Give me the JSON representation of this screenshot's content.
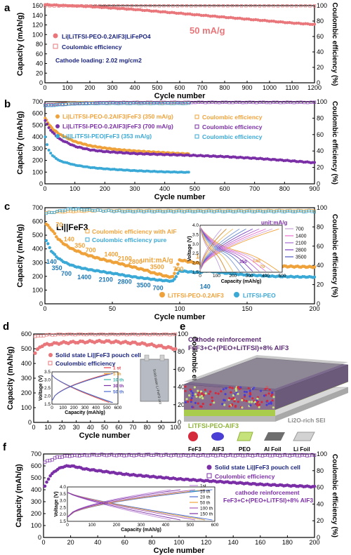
{
  "chart_data": [
    {
      "panel": "a",
      "type": "scatter",
      "xlabel": "Cycle number",
      "ylabel": "Capacity (mAh/g)",
      "y2label": "Coulombic efficiency (%)",
      "xlim": [
        0,
        1200
      ],
      "ylim": [
        0,
        160
      ],
      "y2lim": [
        0,
        100
      ],
      "xticks": [
        0,
        100,
        200,
        300,
        400,
        500,
        600,
        700,
        800,
        900,
        1000,
        1100,
        1200
      ],
      "yticks": [
        0,
        20,
        40,
        60,
        80,
        100,
        120,
        140,
        160
      ],
      "y2ticks": [
        0,
        20,
        40,
        60,
        80,
        100
      ],
      "annotations": [
        "50 mA/g",
        "Cathode loading: 2.02 mg/cm2"
      ],
      "series": [
        {
          "name": "Li|LiTFSI-PEO-0.2AlF3|LiFePO4",
          "axis": "left",
          "color": "#e9767a",
          "x": [
            1,
            100,
            200,
            300,
            400,
            500,
            600,
            700,
            800,
            900,
            1000,
            1100,
            1200
          ],
          "y": [
            162,
            160,
            158,
            155,
            152,
            148,
            144,
            140,
            136,
            132,
            128,
            124,
            121
          ]
        },
        {
          "name": "Coulombic efficiency",
          "axis": "right",
          "color": "#e9767a",
          "x": [
            1,
            200,
            400,
            600,
            800,
            1000,
            1200
          ],
          "y": [
            99.5,
            99.8,
            99.8,
            99.7,
            99.8,
            99.7,
            99.7
          ]
        }
      ]
    },
    {
      "panel": "b",
      "type": "scatter",
      "xlabel": "Cycle number",
      "ylabel": "Capacity (mAh/g)",
      "y2label": "Coulombic efficiency (%)",
      "xlim": [
        0,
        900
      ],
      "ylim": [
        0,
        700
      ],
      "y2lim": [
        0,
        100
      ],
      "xticks": [
        0,
        100,
        200,
        300,
        400,
        500,
        600,
        700,
        800,
        900
      ],
      "yticks": [
        0,
        100,
        200,
        300,
        400,
        500,
        600,
        700
      ],
      "y2ticks": [
        0,
        20,
        40,
        60,
        80,
        100
      ],
      "series": [
        {
          "name": "Li|LiTFSI-PEO-0.2AlF3|FeF3 (350 mA/g)",
          "axis": "left",
          "color": "#f0a23a",
          "x": [
            1,
            10,
            25,
            50,
            100,
            150,
            200,
            250,
            300,
            350,
            400,
            450,
            480
          ],
          "y": [
            560,
            520,
            470,
            420,
            360,
            325,
            305,
            290,
            280,
            272,
            265,
            258,
            255
          ]
        },
        {
          "name": "Li|LiTFSI-PEO-0.2AlF3|FeF3 (700 mA/g)",
          "axis": "left",
          "color": "#7b2fa6",
          "x": [
            1,
            10,
            25,
            50,
            100,
            150,
            200,
            300,
            400,
            500,
            600,
            700,
            800,
            900
          ],
          "y": [
            540,
            490,
            440,
            380,
            320,
            290,
            275,
            258,
            250,
            242,
            232,
            218,
            200,
            180
          ]
        },
        {
          "name": "Li||LiTFSI-PEO|FeF3 (353 mA/g)",
          "axis": "left",
          "color": "#3aa9d6",
          "x": [
            1,
            10,
            25,
            50,
            100,
            150,
            200,
            300,
            400,
            480
          ],
          "y": [
            400,
            300,
            240,
            195,
            160,
            140,
            128,
            112,
            102,
            98
          ]
        },
        {
          "name": "Coulombic efficiency",
          "axis": "right",
          "color": "#f0a23a",
          "x": [
            1,
            100,
            200,
            300,
            400,
            480
          ],
          "y": [
            96,
            98.5,
            98.7,
            98.8,
            98.8,
            98.8
          ]
        },
        {
          "name": "Coulombic efficiency",
          "axis": "right",
          "color": "#7b2fa6",
          "x": [
            1,
            200,
            400,
            600,
            800,
            900
          ],
          "y": [
            96,
            99,
            99.2,
            99.2,
            99.2,
            99.2
          ]
        },
        {
          "name": "Coulombic efficiency",
          "axis": "right",
          "color": "#3aa9d6",
          "x": [
            1,
            100,
            200,
            300,
            400,
            480
          ],
          "y": [
            95,
            97.5,
            98,
            98,
            98,
            98
          ]
        }
      ]
    },
    {
      "panel": "c",
      "type": "scatter",
      "title": "Li||FeF3",
      "xlabel": "Cycle number",
      "ylabel": "Capacity (mAh/g)",
      "y2label": "Coulombic efficiency (%)",
      "xlim": [
        0,
        200
      ],
      "ylim": [
        0,
        700
      ],
      "y2lim": [
        0,
        100
      ],
      "xticks": [
        0,
        50,
        100,
        150,
        200
      ],
      "yticks": [
        0,
        100,
        200,
        300,
        400,
        500,
        600,
        700
      ],
      "y2ticks": [
        0,
        20,
        40,
        60,
        80,
        100
      ],
      "annotations": [
        "unit:mA/g",
        "70",
        "140",
        "350",
        "700",
        "1400",
        "2100",
        "2800",
        "3500",
        "700",
        "140",
        "140",
        "350",
        "700",
        "1400",
        "2100",
        "2800",
        "3500",
        "700",
        "140"
      ],
      "series": [
        {
          "name": "LiTFSI-PEO-0.2AlF3",
          "axis": "left",
          "color": "#f0a23a",
          "x": [
            1,
            5,
            10,
            15,
            20,
            25,
            30,
            35,
            40,
            45,
            50,
            55,
            60,
            65,
            70,
            75,
            80,
            85,
            90,
            95,
            100,
            105,
            110,
            115,
            120,
            130,
            140,
            150,
            160,
            170,
            180,
            190,
            200
          ],
          "y": [
            580,
            540,
            470,
            430,
            400,
            380,
            360,
            345,
            330,
            318,
            305,
            295,
            280,
            270,
            255,
            245,
            225,
            215,
            200,
            195,
            320,
            310,
            300,
            295,
            330,
            315,
            300,
            290,
            280,
            275,
            272,
            270,
            268
          ]
        },
        {
          "name": "LiTFSI-PEO",
          "axis": "left",
          "color": "#3aa9d6",
          "x": [
            1,
            5,
            10,
            15,
            20,
            25,
            30,
            35,
            40,
            45,
            50,
            55,
            60,
            65,
            70,
            75,
            80,
            85,
            90,
            95,
            100,
            105,
            110,
            115,
            120,
            130,
            140,
            150,
            160,
            170,
            180,
            190,
            200
          ],
          "y": [
            460,
            380,
            330,
            300,
            280,
            265,
            255,
            245,
            238,
            230,
            222,
            215,
            205,
            198,
            190,
            185,
            178,
            172,
            168,
            165,
            240,
            235,
            230,
            228,
            240,
            228,
            218,
            210,
            205,
            200,
            198,
            196,
            195
          ]
        },
        {
          "name": "Coulombic efficiency with AlF",
          "axis": "right",
          "color": "#f0a23a",
          "x": [
            1,
            20,
            40,
            60,
            80,
            100,
            120,
            140,
            160,
            180,
            200
          ],
          "y": [
            95,
            96,
            97,
            97,
            97,
            97,
            97,
            97,
            97,
            97,
            97
          ]
        },
        {
          "name": "Coulombic efficiency pure",
          "axis": "right",
          "color": "#3aa9d6",
          "x": [
            1,
            20,
            40,
            60,
            80,
            100,
            120,
            140,
            160,
            180,
            200
          ],
          "y": [
            94,
            99,
            97,
            96,
            96,
            96,
            96,
            96,
            96,
            96,
            96
          ]
        }
      ],
      "inset": {
        "xlabel": "Capacity (mAh/g)",
        "ylabel": "Voltage (V)",
        "xlim": [
          0,
          500
        ],
        "ylim": [
          1.5,
          4.0
        ],
        "xticks": [
          0,
          100,
          200,
          300,
          400,
          500
        ],
        "yticks": [
          1.5,
          2.0,
          2.5,
          3.0,
          3.5,
          4.0
        ],
        "annotations": [
          "unit:mA/g",
          "350",
          "140",
          "70"
        ],
        "legend": [
          "700",
          "1400",
          "2100",
          "2800",
          "3500"
        ]
      }
    },
    {
      "panel": "d",
      "type": "scatter",
      "xlabel": "Cycle number",
      "ylabel": "Capacity (mAh/g)",
      "y2label": "Coulombic efficiency (%)",
      "xlim": [
        0,
        100
      ],
      "ylim": [
        0,
        600
      ],
      "y2lim": [
        0,
        100
      ],
      "xticks": [
        0,
        10,
        20,
        30,
        40,
        50,
        60,
        70,
        80,
        90,
        100
      ],
      "yticks": [
        0,
        100,
        200,
        300,
        400,
        500,
        600
      ],
      "y2ticks": [
        0,
        20,
        40,
        60,
        80,
        100
      ],
      "series": [
        {
          "name": "Solid state Li||FeF3 pouch cell",
          "axis": "left",
          "color": "#e9767a",
          "x": [
            1,
            5,
            10,
            20,
            30,
            40,
            50,
            60,
            70,
            80,
            90,
            100
          ],
          "y": [
            470,
            520,
            530,
            540,
            545,
            548,
            550,
            545,
            540,
            530,
            515,
            500
          ]
        },
        {
          "name": "Coulombic efficiency",
          "axis": "right",
          "color": "#e9767a",
          "x": [
            1,
            10,
            20,
            30,
            40,
            50,
            60,
            70,
            80,
            90,
            100
          ],
          "y": [
            97,
            99,
            99.5,
            99.5,
            99.5,
            99.5,
            99.5,
            99.5,
            99.5,
            99.5,
            99.5
          ]
        }
      ],
      "inset": {
        "xlabel": "Capacity (mAh/g)",
        "ylabel": "Voltage (V)",
        "xlim": [
          0,
          600
        ],
        "ylim": [
          1.5,
          3.5
        ],
        "xticks": [
          0,
          100,
          200,
          300,
          400,
          500,
          600
        ],
        "yticks": [
          1.5,
          2.0,
          2.5,
          3.0,
          3.5
        ],
        "legend": [
          "1 st",
          "5 th",
          "10 th",
          "30 th",
          "50 th"
        ],
        "photo_label": "Solid state Li-FeF3 cell"
      }
    },
    {
      "panel": "e",
      "type": "diagram",
      "labels": [
        "Cathode reinforcement",
        "FeF3+C+(PEO+LiTFSI)+8% AlF3",
        "LiTFSI-PEO-AlF3",
        "Li2O-rich SEI"
      ],
      "legend": [
        "FeF3",
        "AlF3",
        "PEO",
        "Al Foil",
        "Li Foil"
      ]
    },
    {
      "panel": "f",
      "type": "scatter",
      "xlabel": "Cycle number",
      "ylabel": "Capacity (mAh/g)",
      "y2label": "Coulombic efficiency (%)",
      "xlim": [
        0,
        200
      ],
      "ylim": [
        0,
        700
      ],
      "y2lim": [
        0,
        100
      ],
      "xticks": [
        0,
        20,
        40,
        60,
        80,
        100,
        120,
        140,
        160,
        180,
        200
      ],
      "yticks": [
        0,
        100,
        200,
        300,
        400,
        500,
        600,
        700
      ],
      "y2ticks": [
        0,
        20,
        40,
        60,
        80,
        100
      ],
      "annotations": [
        "cathode reinforcement",
        "FeF3+C+(PEO+LiTFSI)+8% AlF3"
      ],
      "series": [
        {
          "name": "Solid state Li||FeF3 pouch cell",
          "axis": "left",
          "color": "#7b2fa6",
          "x": [
            1,
            5,
            10,
            15,
            20,
            25,
            30,
            40,
            50,
            60,
            80,
            100,
            120,
            140,
            160,
            180,
            200
          ],
          "y": [
            430,
            520,
            570,
            595,
            600,
            590,
            575,
            560,
            545,
            530,
            510,
            490,
            475,
            460,
            445,
            435,
            425
          ]
        },
        {
          "name": "Coulombic efficiency",
          "axis": "right",
          "color": "#7b2fa6",
          "x": [
            1,
            10,
            20,
            40,
            60,
            80,
            100,
            120,
            140,
            160,
            180,
            200
          ],
          "y": [
            90,
            96,
            98,
            99,
            98.5,
            99,
            98.5,
            98.5,
            98.5,
            98.5,
            98.5,
            98.5
          ]
        }
      ],
      "inset": {
        "xlabel": "Capacity (mAh/g)",
        "ylabel": "Voltage (V)",
        "xlim": [
          0,
          600
        ],
        "ylim": [
          1.5,
          4.0
        ],
        "xticks": [
          0,
          100,
          200,
          300,
          400,
          500,
          600
        ],
        "yticks": [
          1.5,
          2.0,
          2.5,
          3.0,
          3.5,
          4.0
        ],
        "legend": [
          "1st",
          "10 th",
          "20 th",
          "50 th",
          "100 th",
          "150 th"
        ]
      }
    }
  ]
}
